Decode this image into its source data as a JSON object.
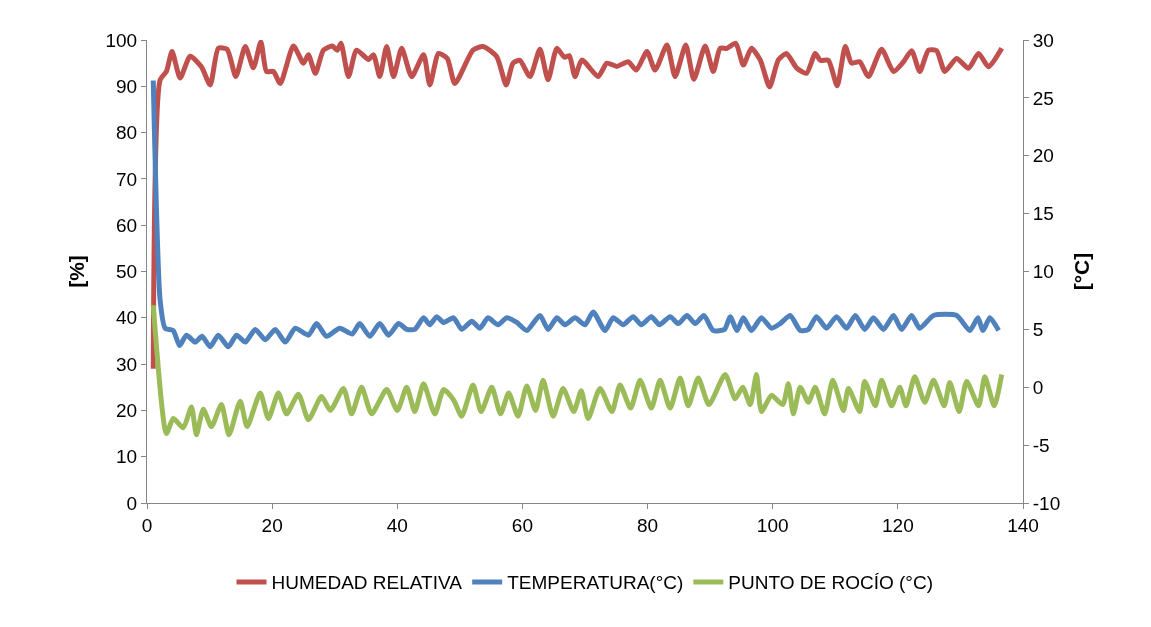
{
  "chart_data": {
    "type": "line",
    "ylabel": "[%]",
    "y2label": "[°C]",
    "xlim": [
      0,
      140
    ],
    "xticks": [
      0,
      20,
      40,
      60,
      80,
      100,
      120,
      140
    ],
    "ylim": [
      0,
      100
    ],
    "yticks": [
      0,
      10,
      20,
      30,
      40,
      50,
      60,
      70,
      80,
      90,
      100
    ],
    "y2lim": [
      -10,
      30
    ],
    "y2ticks": [
      -10,
      -5,
      0,
      5,
      10,
      15,
      20,
      25,
      30
    ],
    "legend": "bottom",
    "marker": "none",
    "line_style": "solid",
    "series": [
      {
        "name": "HUMEDAD RELATIVA",
        "color": "#c0504d",
        "x": [
          1,
          2.1,
          3.1,
          4.0,
          5.3,
          6.9,
          8.7,
          10.1,
          11.4,
          12.8,
          14.2,
          15.7,
          17.0,
          18.2,
          19.1,
          20.2,
          21.3,
          23.4,
          25.0,
          25.8,
          26.9,
          28.2,
          29.6,
          30.4,
          31.0,
          32.2,
          33.5,
          35.4,
          36.2,
          37.2,
          38.3,
          39.4,
          40.7,
          42.3,
          44.2,
          45.2,
          46.6,
          48.0,
          49.2,
          52.1,
          53.7,
          55.9,
          57.4,
          58.5,
          59.6,
          61.2,
          62.8,
          64.1,
          65.5,
          66.7,
          67.5,
          68.4,
          69.5,
          72.1,
          73.5,
          75.1,
          76.9,
          78.2,
          79.9,
          81.2,
          83.1,
          84.4,
          86.1,
          87.4,
          89.2,
          90.5,
          91.6,
          92.7,
          94.1,
          95.3,
          96.6,
          98.0,
          99.5,
          100.9,
          102.2,
          103.8,
          105.4,
          106.8,
          107.6,
          108.9,
          110.3,
          111.6,
          112.6,
          113.9,
          115.3,
          117.4,
          119.3,
          120.9,
          122.2,
          123.5,
          124.9,
          126.2,
          127.5,
          129.4,
          131.3,
          132.9,
          134.5,
          136.6
        ],
        "values": [
          29,
          91.4,
          93.2,
          97.5,
          91.8,
          96.5,
          94.2,
          90.3,
          98.2,
          98.0,
          92.1,
          98.6,
          94.0,
          99.6,
          93.2,
          93.2,
          90.6,
          98.7,
          95.0,
          96.8,
          92.8,
          97.8,
          98.7,
          97.8,
          99.3,
          92.1,
          97.8,
          95.8,
          96.8,
          92.1,
          98.6,
          92.1,
          98.2,
          92.1,
          96.8,
          90.3,
          97.1,
          96.0,
          90.6,
          97.8,
          98.6,
          96.4,
          90.3,
          95.0,
          95.6,
          92.1,
          98.0,
          91.4,
          98.2,
          96.3,
          96.6,
          92.1,
          95.7,
          92.1,
          95.0,
          94.3,
          95.3,
          93.5,
          97.5,
          93.5,
          98.9,
          92.1,
          98.9,
          91.5,
          98.7,
          93.2,
          98.2,
          98.2,
          99.3,
          94.6,
          98.2,
          95.7,
          89.9,
          95.7,
          97.1,
          94.0,
          92.8,
          97.1,
          95.6,
          95.6,
          90.1,
          98.6,
          95.0,
          95.3,
          92.1,
          98.0,
          93.2,
          95.3,
          97.7,
          93.2,
          97.8,
          97.7,
          93.2,
          96.0,
          93.9,
          97.1,
          94.2,
          98.2
        ]
      },
      {
        "name": "TEMPERATURA(°C)",
        "color": "#4f81bd",
        "axis": "y2",
        "x": [
          1,
          2.1,
          2.9,
          4.2,
          5.2,
          6.3,
          7.7,
          8.8,
          10.1,
          11.4,
          13.0,
          14.3,
          15.7,
          17.3,
          18.9,
          20.5,
          22.1,
          23.7,
          25.8,
          27.1,
          28.7,
          30.8,
          32.8,
          34.0,
          35.6,
          37.2,
          38.6,
          40.2,
          41.5,
          42.8,
          44.2,
          45.2,
          46.3,
          47.4,
          49.0,
          50.3,
          51.9,
          53.2,
          54.5,
          56.1,
          57.5,
          59.1,
          60.7,
          62.8,
          64.1,
          65.5,
          66.8,
          68.4,
          70.0,
          71.3,
          73.2,
          74.5,
          76.1,
          77.7,
          79.0,
          80.6,
          81.9,
          83.6,
          84.9,
          86.3,
          87.6,
          89.0,
          90.5,
          92.3,
          93.2,
          94.3,
          95.3,
          96.6,
          98.2,
          99.8,
          101.2,
          102.8,
          104.4,
          105.7,
          107.0,
          108.6,
          110.2,
          111.8,
          113.2,
          114.7,
          116.1,
          117.7,
          119.3,
          120.6,
          122.2,
          123.5,
          125.7,
          129.4,
          131.5,
          132.8,
          133.6,
          134.7,
          136.1
        ],
        "values": [
          26.5,
          7.5,
          5.1,
          4.9,
          3.6,
          4.5,
          3.9,
          4.4,
          3.5,
          4.5,
          3.5,
          4.5,
          3.9,
          5.0,
          4.1,
          5.0,
          3.9,
          5.1,
          4.5,
          5.5,
          4.4,
          5.1,
          4.6,
          5.5,
          4.4,
          5.5,
          4.5,
          5.5,
          5.0,
          5.0,
          6.0,
          5.4,
          6.1,
          5.6,
          6.0,
          5.0,
          5.7,
          5.1,
          6.0,
          5.4,
          6.0,
          5.6,
          4.9,
          6.2,
          5.0,
          6.0,
          5.4,
          6.0,
          5.4,
          6.5,
          4.9,
          6.0,
          5.4,
          6.1,
          5.4,
          6.1,
          5.4,
          6.1,
          5.5,
          6.2,
          5.5,
          6.2,
          4.9,
          5.0,
          6.1,
          4.9,
          6.0,
          4.9,
          6.0,
          5.1,
          5.5,
          6.2,
          4.9,
          5.0,
          6.1,
          5.1,
          6.1,
          5.1,
          6.2,
          5.0,
          6.0,
          5.0,
          6.2,
          5.0,
          6.2,
          5.1,
          6.2,
          6.2,
          4.9,
          6.0,
          4.9,
          6.0,
          4.9
        ]
      },
      {
        "name": "PUNTO DE ROCÍO (°C)",
        "color": "#9bbb59",
        "axis": "y2",
        "x": [
          1,
          3.1,
          4.2,
          5.8,
          7.1,
          7.9,
          9.0,
          10.3,
          11.9,
          13.1,
          14.9,
          16.0,
          18.1,
          19.4,
          21.0,
          22.3,
          24.2,
          25.8,
          27.9,
          29.3,
          31.4,
          32.7,
          34.3,
          35.9,
          38.3,
          40.0,
          41.5,
          42.8,
          44.2,
          46.0,
          47.4,
          49.0,
          50.3,
          52.1,
          53.4,
          55.1,
          56.5,
          57.8,
          59.3,
          60.7,
          62.1,
          63.3,
          64.9,
          66.5,
          68.2,
          69.4,
          70.5,
          72.4,
          74.3,
          75.6,
          77.3,
          78.8,
          80.6,
          82.0,
          83.6,
          85.2,
          86.5,
          88.1,
          89.8,
          92.4,
          94.0,
          95.2,
          96.4,
          97.4,
          98.2,
          99.8,
          101.6,
          102.5,
          103.3,
          104.4,
          105.7,
          106.8,
          108.3,
          109.6,
          111.3,
          112.1,
          113.9,
          114.7,
          116.4,
          117.4,
          119.0,
          120.3,
          121.3,
          122.7,
          124.3,
          125.7,
          127.4,
          128.3,
          129.8,
          131.0,
          132.9,
          133.9,
          135.4,
          136.6
        ],
        "values": [
          7.1,
          -4.0,
          -2.7,
          -3.5,
          -1.7,
          -4.1,
          -1.9,
          -3.4,
          -1.5,
          -4.1,
          -1.2,
          -3.4,
          -0.5,
          -2.7,
          -0.5,
          -2.3,
          -0.6,
          -2.8,
          -0.8,
          -2.0,
          -0.1,
          -2.3,
          0.0,
          -2.3,
          -0.2,
          -2.0,
          0.0,
          -2.1,
          0.3,
          -2.3,
          -0.2,
          -1.1,
          -2.5,
          0.2,
          -2.1,
          0.0,
          -2.3,
          -0.5,
          -2.5,
          0.1,
          -2.0,
          0.6,
          -2.5,
          -0.1,
          -2.1,
          -0.3,
          -2.7,
          -0.1,
          -2.1,
          0.2,
          -1.8,
          0.6,
          -1.8,
          0.6,
          -1.8,
          0.8,
          -1.6,
          0.8,
          -1.5,
          1.1,
          -1.0,
          0.0,
          -1.5,
          1.1,
          -2.1,
          -0.7,
          -1.5,
          0.3,
          -2.3,
          0.0,
          -1.3,
          0.0,
          -2.3,
          0.6,
          -2.0,
          -0.1,
          -2.1,
          0.5,
          -1.6,
          0.6,
          -1.6,
          0.0,
          -1.6,
          0.9,
          -1.3,
          0.6,
          -1.6,
          0.4,
          -2.1,
          0.5,
          -1.6,
          0.9,
          -1.6,
          1.1
        ]
      }
    ]
  }
}
